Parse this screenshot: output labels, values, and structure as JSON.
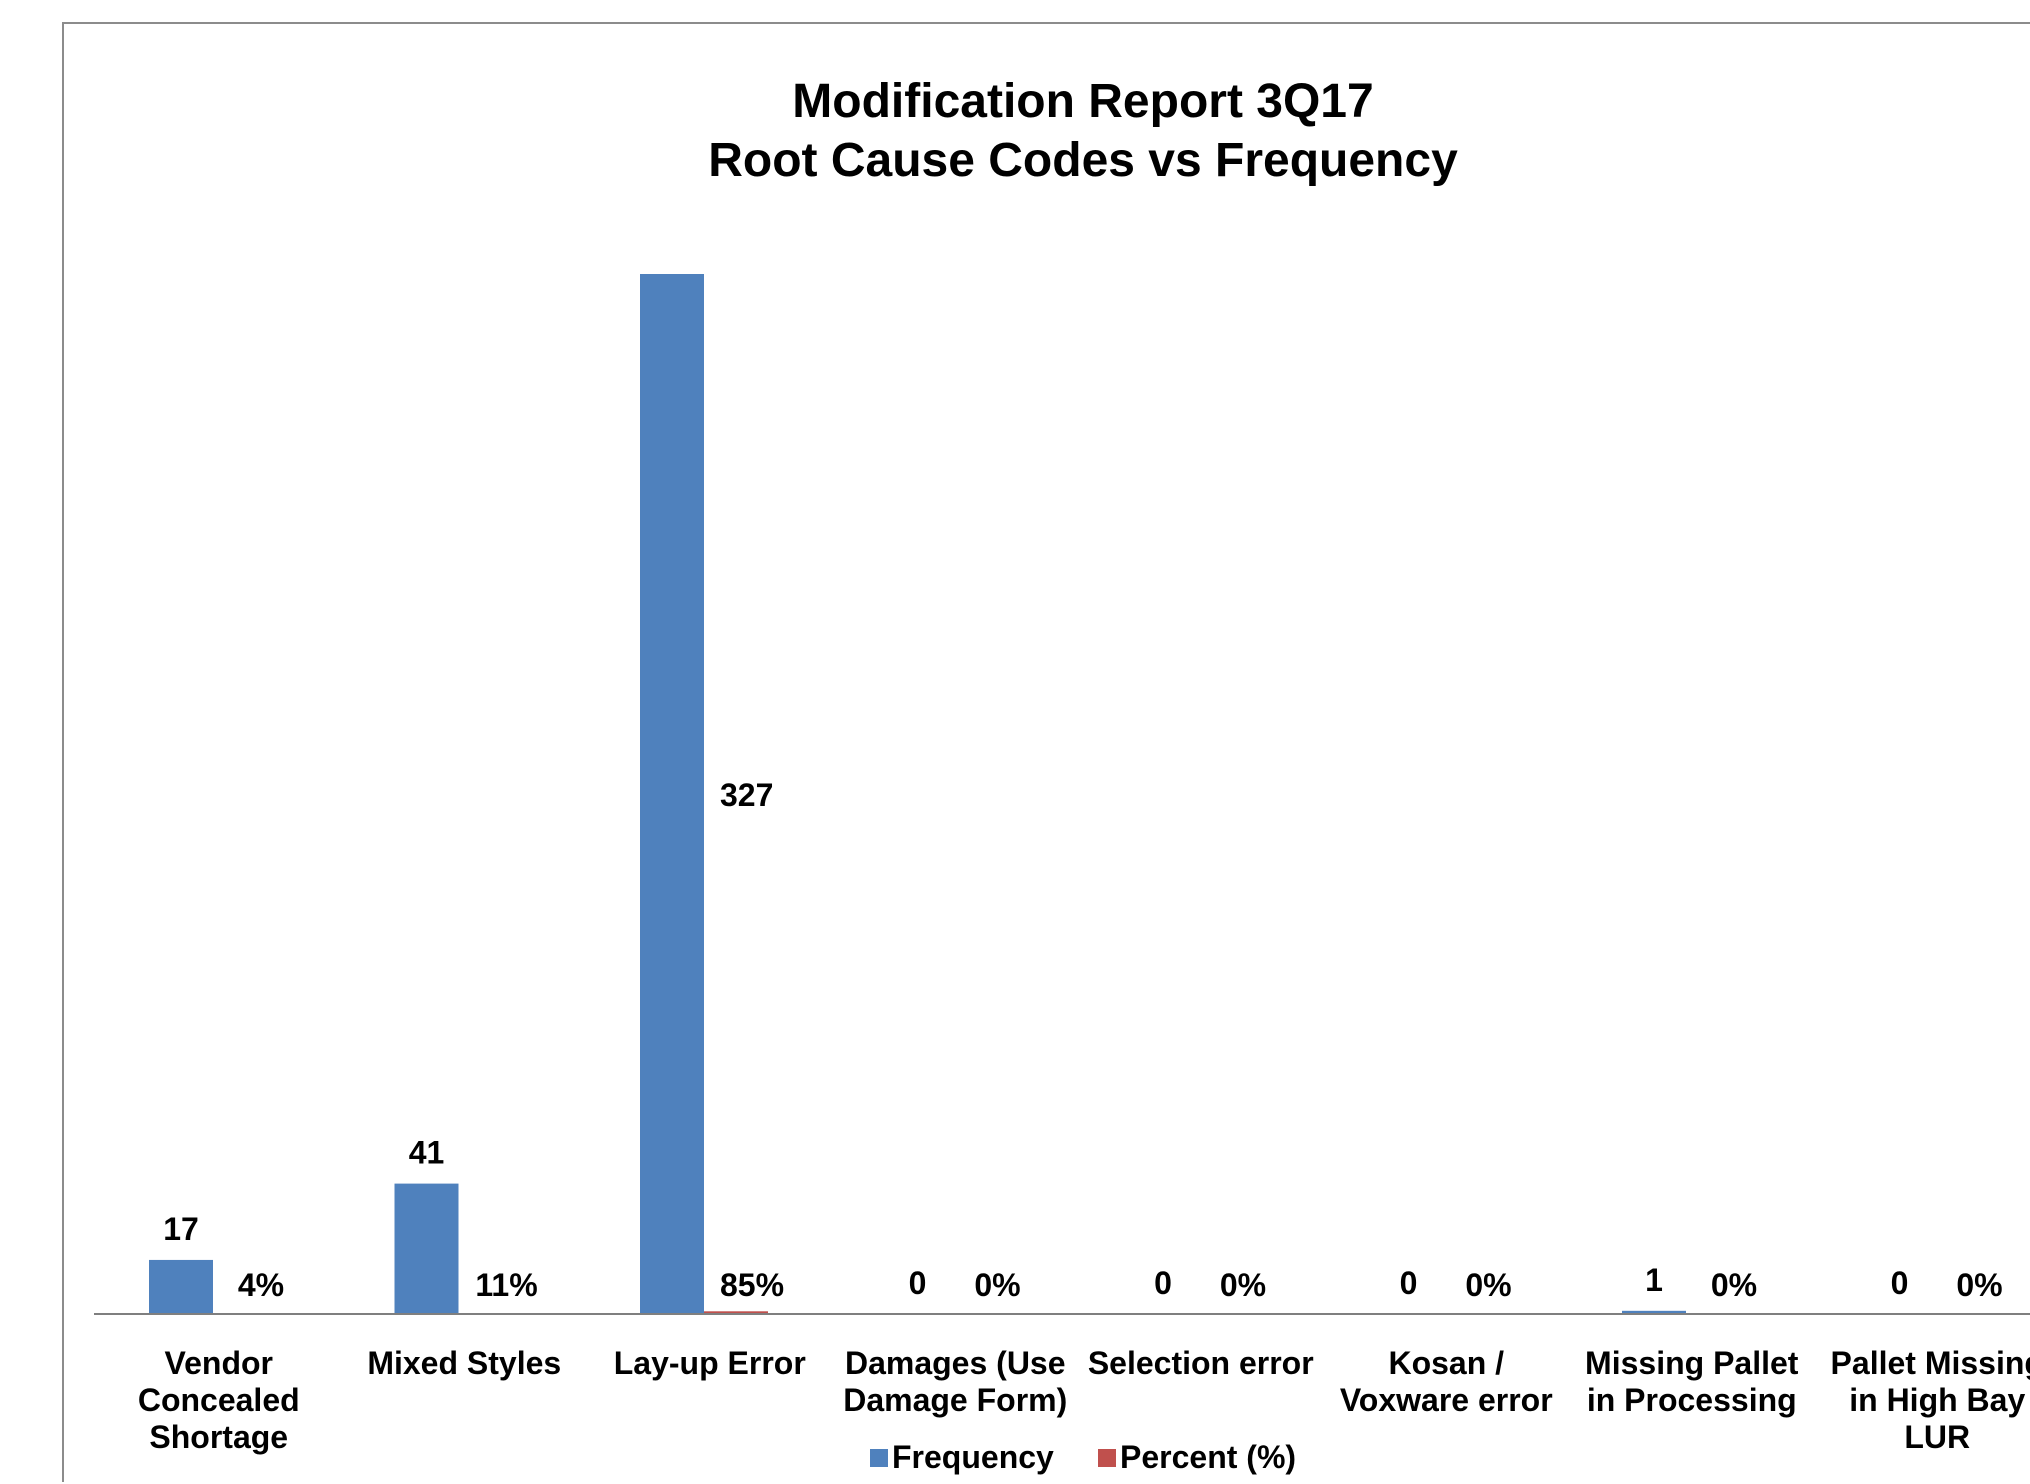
{
  "chart_data": {
    "type": "bar",
    "title": [
      "Modification Report 3Q17",
      "Root Cause Codes vs Frequency"
    ],
    "categories": [
      [
        "Vendor",
        "Concealed",
        "Shortage"
      ],
      [
        "Mixed Styles"
      ],
      [
        "Lay-up Error"
      ],
      [
        "Damages (Use",
        "Damage Form)"
      ],
      [
        "Selection error"
      ],
      [
        "Kosan /",
        "Voxware error"
      ],
      [
        "Missing Pallet",
        "in Processing"
      ],
      [
        "Pallet Missing",
        "in High Bay",
        "LUR"
      ]
    ],
    "series": [
      {
        "name": "Frequency",
        "color": "#4f81bd",
        "values": [
          17,
          41,
          327,
          0,
          0,
          0,
          1,
          0
        ],
        "labels": [
          "17",
          "41",
          "327",
          "0",
          "0",
          "0",
          "1",
          "0"
        ]
      },
      {
        "name": "Percent (%)",
        "color": "#c0504d",
        "values": [
          0.04,
          0.11,
          0.85,
          0,
          0,
          0,
          0,
          0
        ],
        "labels": [
          "4%",
          "11%",
          "85%",
          "0%",
          "0%",
          "0%",
          "0%",
          "0%"
        ]
      }
    ],
    "ylim": [
      0,
      340
    ],
    "grid": false,
    "legend": "bottom"
  }
}
